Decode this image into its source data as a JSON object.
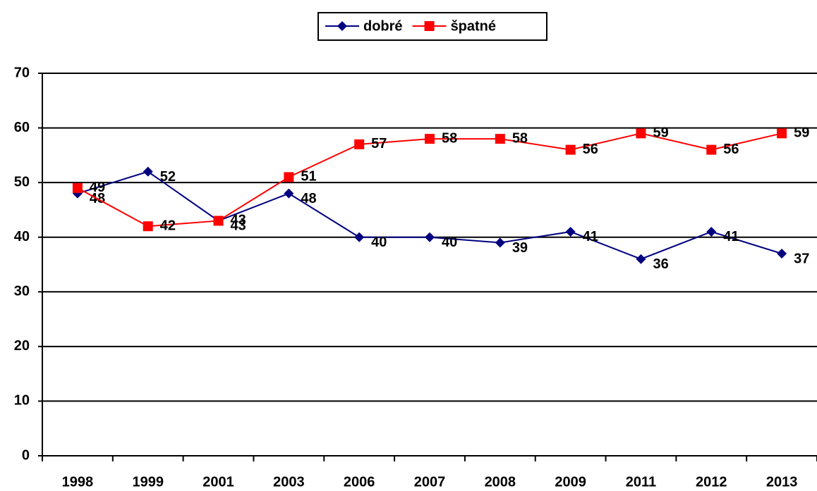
{
  "chart_data": {
    "type": "line",
    "categories": [
      "1998",
      "1999",
      "2001",
      "2003",
      "2006",
      "2007",
      "2008",
      "2009",
      "2011",
      "2012",
      "2013"
    ],
    "series": [
      {
        "name": "dobré",
        "color": "#000080",
        "marker": "diamond",
        "values": [
          48,
          52,
          43,
          48,
          40,
          40,
          39,
          41,
          36,
          41,
          37
        ]
      },
      {
        "name": "špatné",
        "color": "#ff0000",
        "marker": "square",
        "values": [
          49,
          42,
          43,
          51,
          57,
          58,
          58,
          56,
          59,
          56,
          59
        ]
      }
    ],
    "ylim": [
      0,
      70
    ],
    "yticks": [
      0,
      10,
      20,
      30,
      40,
      50,
      60,
      70
    ],
    "grid": true,
    "legend": "top"
  }
}
